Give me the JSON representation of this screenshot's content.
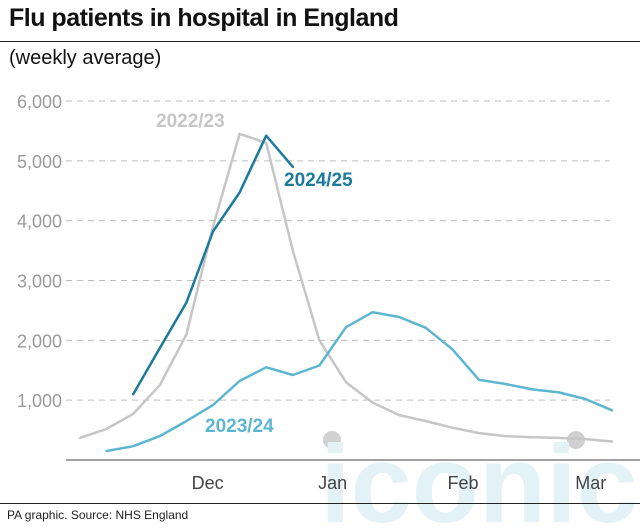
{
  "header": {
    "title": "Flu patients in hospital in England",
    "subtitle": "(weekly average)"
  },
  "footer": {
    "source": "PA graphic. Source: NHS England"
  },
  "watermark": {
    "text": "iconic"
  },
  "chart_data": {
    "type": "line",
    "title": "Flu patients in hospital in England",
    "subtitle": "(weekly average)",
    "xlabel": "",
    "ylabel": "",
    "ylim": [
      0,
      6000
    ],
    "xlim": [
      0,
      21
    ],
    "grid": true,
    "y_ticks": [
      1000,
      2000,
      3000,
      4000,
      5000,
      6000
    ],
    "y_tick_labels": [
      "1,000",
      "2,000",
      "3,000",
      "4,000",
      "5,000",
      "6,000"
    ],
    "x_tick_positions": [
      4.8,
      9.5,
      14.4,
      19.2
    ],
    "x_tick_labels": [
      "Dec",
      "Jan",
      "Feb",
      "Mar"
    ],
    "series": [
      {
        "name": "2022/23",
        "color": "#c6c6c6",
        "x": [
          0,
          1,
          2,
          3,
          4,
          5,
          6,
          7,
          8,
          9,
          10,
          11,
          12,
          13,
          14,
          15,
          16,
          17,
          18,
          19,
          20
        ],
        "values": [
          370,
          520,
          770,
          1250,
          2100,
          3900,
          5450,
          5300,
          3500,
          2000,
          1300,
          960,
          750,
          650,
          540,
          450,
          400,
          380,
          370,
          350,
          310
        ]
      },
      {
        "name": "2023/24",
        "color": "#5db6d0",
        "x": [
          1,
          2,
          3,
          4,
          5,
          6,
          7,
          8,
          9,
          10,
          11,
          12,
          13,
          14,
          15,
          16,
          17,
          18,
          19,
          20
        ],
        "values": [
          150,
          230,
          400,
          650,
          920,
          1320,
          1550,
          1420,
          1580,
          2220,
          2470,
          2390,
          2210,
          1850,
          1340,
          1270,
          1180,
          1130,
          1020,
          830
        ]
      },
      {
        "name": "2024/25",
        "color": "#1c7a9c",
        "x": [
          2,
          3,
          4,
          5,
          6,
          7,
          8
        ],
        "values": [
          1100,
          1870,
          2630,
          3820,
          4470,
          5420,
          4900
        ]
      }
    ]
  }
}
